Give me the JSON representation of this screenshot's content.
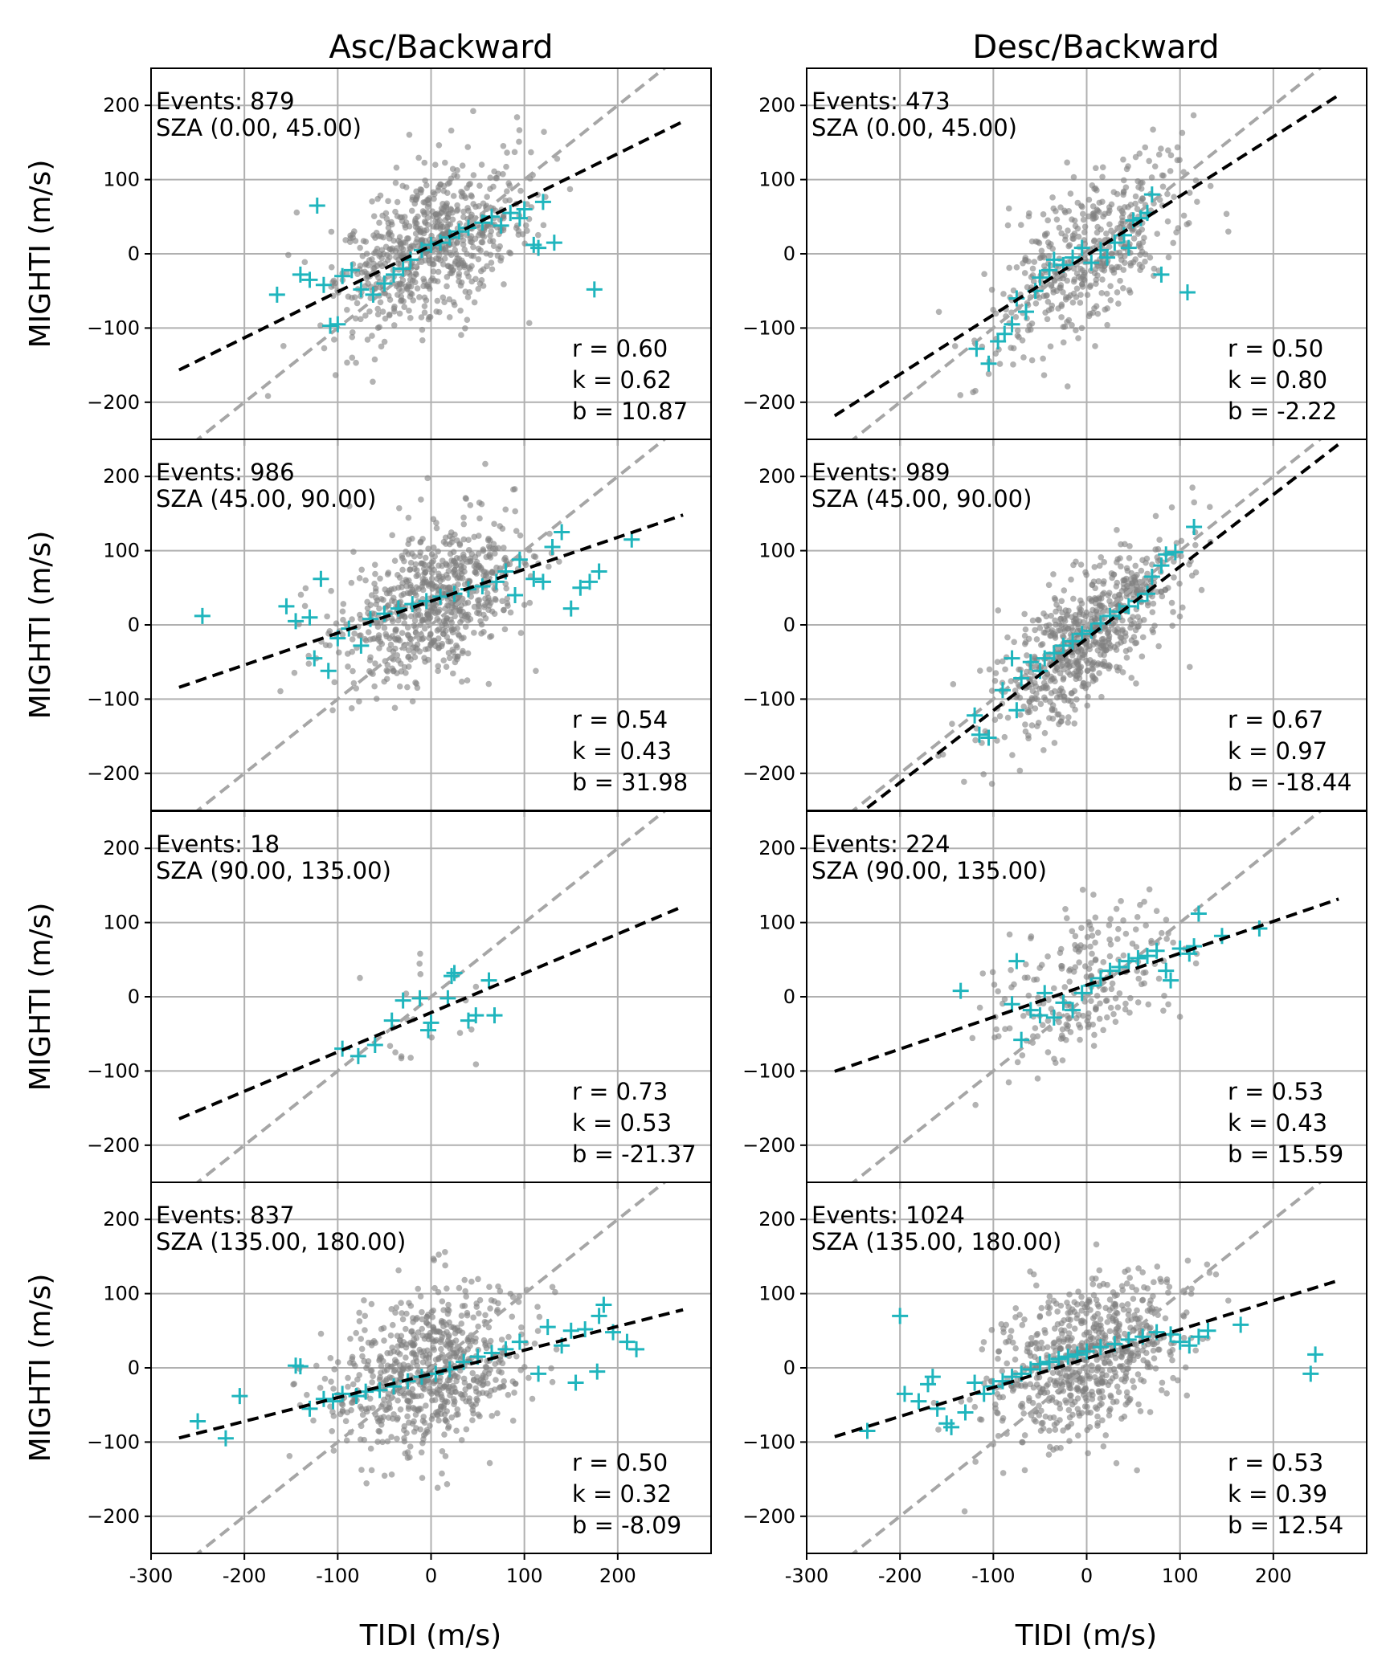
{
  "chart_data": {
    "type": "scatter",
    "layout": "4x2 panel grid",
    "column_titles": [
      "Asc/Backward",
      "Desc/Backward"
    ],
    "xlabel": "TIDI (m/s)",
    "ylabel": "MIGHTI (m/s)",
    "xlim": [
      -300,
      300
    ],
    "ylim": [
      -250,
      250
    ],
    "xticks": [
      -300,
      -200,
      -100,
      0,
      100,
      200
    ],
    "xtick_labels": [
      "-300",
      "-200",
      "-100",
      "0",
      "100",
      "200"
    ],
    "yticks": [
      -200,
      -100,
      0,
      100,
      200
    ],
    "ytick_labels": [
      "−200",
      "−100",
      "0",
      "100",
      "200"
    ],
    "grid": true,
    "reference_line": "y = x (gray dashed)",
    "fit_line": "y = k x + b (black dashed)",
    "colors": {
      "scatter": "#808080",
      "markers": "#1fb5bd",
      "fit": "#000000",
      "reference": "#a6a6a6",
      "grid": "#b0b0b0"
    },
    "panels": [
      {
        "column": "Asc/Backward",
        "row": 1,
        "events_text": "Events: 879",
        "sza_text": "SZA (0.00, 45.00)",
        "r_text": "r = 0.60",
        "k_text": "k = 0.62",
        "b_text": "b = 10.87",
        "r": 0.6,
        "k": 0.62,
        "b": 10.87,
        "fit_x": [
          -270,
          270
        ],
        "plus_points": [
          [
            -122,
            65
          ],
          [
            -165,
            -55
          ],
          [
            -140,
            -28
          ],
          [
            -130,
            -35
          ],
          [
            -115,
            -42
          ],
          [
            -108,
            -97
          ],
          [
            -100,
            -95
          ],
          [
            -95,
            -30
          ],
          [
            -85,
            -22
          ],
          [
            -75,
            -48
          ],
          [
            -62,
            -55
          ],
          [
            -50,
            -40
          ],
          [
            -40,
            -28
          ],
          [
            -30,
            -20
          ],
          [
            -22,
            -8
          ],
          [
            -10,
            5
          ],
          [
            0,
            12
          ],
          [
            10,
            15
          ],
          [
            20,
            22
          ],
          [
            30,
            30
          ],
          [
            40,
            35
          ],
          [
            55,
            42
          ],
          [
            65,
            50
          ],
          [
            75,
            38
          ],
          [
            85,
            55
          ],
          [
            95,
            48
          ],
          [
            100,
            60
          ],
          [
            110,
            12
          ],
          [
            115,
            8
          ],
          [
            120,
            70
          ],
          [
            132,
            15
          ],
          [
            175,
            -48
          ]
        ]
      },
      {
        "column": "Desc/Backward",
        "row": 1,
        "events_text": "Events: 473",
        "sza_text": "SZA (0.00, 45.00)",
        "r_text": "r = 0.50",
        "k_text": "k = 0.80",
        "b_text": "b = -2.22",
        "r": 0.5,
        "k": 0.8,
        "b": -2.22,
        "fit_x": [
          -270,
          270
        ],
        "plus_points": [
          [
            -118,
            -128
          ],
          [
            -105,
            -148
          ],
          [
            -95,
            -118
          ],
          [
            -88,
            -108
          ],
          [
            -80,
            -95
          ],
          [
            -75,
            -60
          ],
          [
            -65,
            -78
          ],
          [
            -55,
            -50
          ],
          [
            -50,
            -32
          ],
          [
            -40,
            -22
          ],
          [
            -35,
            -8
          ],
          [
            -25,
            -15
          ],
          [
            -15,
            -5
          ],
          [
            -5,
            8
          ],
          [
            5,
            -12
          ],
          [
            15,
            5
          ],
          [
            22,
            -5
          ],
          [
            30,
            15
          ],
          [
            40,
            25
          ],
          [
            45,
            8
          ],
          [
            50,
            45
          ],
          [
            58,
            48
          ],
          [
            65,
            55
          ],
          [
            70,
            80
          ],
          [
            80,
            -28
          ],
          [
            108,
            -52
          ]
        ]
      },
      {
        "column": "Asc/Backward",
        "row": 2,
        "events_text": "Events: 986",
        "sza_text": "SZA (45.00, 90.00)",
        "r_text": "r = 0.54",
        "k_text": "k = 0.43",
        "b_text": "b = 31.98",
        "r": 0.54,
        "k": 0.43,
        "b": 31.98,
        "fit_x": [
          -270,
          270
        ],
        "plus_points": [
          [
            -245,
            12
          ],
          [
            -155,
            25
          ],
          [
            -145,
            5
          ],
          [
            -130,
            10
          ],
          [
            -118,
            62
          ],
          [
            -125,
            -45
          ],
          [
            -110,
            -62
          ],
          [
            -100,
            -18
          ],
          [
            -88,
            -5
          ],
          [
            -75,
            -28
          ],
          [
            -65,
            8
          ],
          [
            -50,
            15
          ],
          [
            -35,
            22
          ],
          [
            -20,
            28
          ],
          [
            -5,
            32
          ],
          [
            10,
            38
          ],
          [
            25,
            42
          ],
          [
            40,
            48
          ],
          [
            55,
            52
          ],
          [
            70,
            58
          ],
          [
            80,
            72
          ],
          [
            90,
            40
          ],
          [
            95,
            88
          ],
          [
            110,
            62
          ],
          [
            120,
            58
          ],
          [
            130,
            105
          ],
          [
            140,
            125
          ],
          [
            150,
            22
          ],
          [
            160,
            50
          ],
          [
            170,
            58
          ],
          [
            180,
            72
          ],
          [
            215,
            115
          ]
        ]
      },
      {
        "column": "Desc/Backward",
        "row": 2,
        "events_text": "Events: 989",
        "sza_text": "SZA (45.00, 90.00)",
        "r_text": "r = 0.67",
        "k_text": "k = 0.97",
        "b_text": "b = -18.44",
        "r": 0.67,
        "k": 0.97,
        "b": -18.44,
        "fit_x": [
          -250,
          270
        ],
        "plus_points": [
          [
            -115,
            -148
          ],
          [
            -105,
            -152
          ],
          [
            -120,
            -122
          ],
          [
            -90,
            -88
          ],
          [
            -80,
            -45
          ],
          [
            -75,
            -115
          ],
          [
            -70,
            -72
          ],
          [
            -60,
            -50
          ],
          [
            -50,
            -62
          ],
          [
            -45,
            -45
          ],
          [
            -35,
            -38
          ],
          [
            -25,
            -28
          ],
          [
            -15,
            -22
          ],
          [
            -5,
            -12
          ],
          [
            5,
            -8
          ],
          [
            15,
            2
          ],
          [
            25,
            12
          ],
          [
            35,
            18
          ],
          [
            45,
            25
          ],
          [
            55,
            32
          ],
          [
            65,
            42
          ],
          [
            70,
            65
          ],
          [
            80,
            80
          ],
          [
            85,
            95
          ],
          [
            95,
            98
          ],
          [
            115,
            132
          ]
        ]
      },
      {
        "column": "Asc/Backward",
        "row": 3,
        "events_text": "Events: 18",
        "sza_text": "SZA (90.00, 135.00)",
        "r_text": "r = 0.73",
        "k_text": "k = 0.53",
        "b_text": "b = -21.37",
        "r": 0.73,
        "k": 0.53,
        "b": -21.37,
        "fit_x": [
          -270,
          270
        ],
        "plus_points": [
          [
            -95,
            -70
          ],
          [
            -78,
            -80
          ],
          [
            -60,
            -65
          ],
          [
            -42,
            -32
          ],
          [
            -30,
            -5
          ],
          [
            -12,
            -2
          ],
          [
            -3,
            -45
          ],
          [
            0,
            -35
          ],
          [
            18,
            -2
          ],
          [
            22,
            28
          ],
          [
            25,
            32
          ],
          [
            40,
            -32
          ],
          [
            48,
            -25
          ],
          [
            62,
            22
          ],
          [
            68,
            -25
          ]
        ]
      },
      {
        "column": "Desc/Backward",
        "row": 3,
        "events_text": "Events: 224",
        "sza_text": "SZA (90.00, 135.00)",
        "r_text": "r = 0.53",
        "k_text": "k = 0.43",
        "b_text": "b = 15.59",
        "r": 0.53,
        "k": 0.43,
        "b": 15.59,
        "fit_x": [
          -270,
          270
        ],
        "plus_points": [
          [
            -135,
            8
          ],
          [
            -80,
            -10
          ],
          [
            -75,
            48
          ],
          [
            -70,
            -58
          ],
          [
            -60,
            -18
          ],
          [
            -50,
            -25
          ],
          [
            -45,
            5
          ],
          [
            -35,
            -28
          ],
          [
            -25,
            -8
          ],
          [
            -15,
            -18
          ],
          [
            -5,
            5
          ],
          [
            5,
            15
          ],
          [
            15,
            25
          ],
          [
            25,
            35
          ],
          [
            35,
            40
          ],
          [
            45,
            48
          ],
          [
            55,
            52
          ],
          [
            65,
            55
          ],
          [
            75,
            62
          ],
          [
            85,
            35
          ],
          [
            90,
            22
          ],
          [
            100,
            65
          ],
          [
            110,
            58
          ],
          [
            115,
            68
          ],
          [
            120,
            112
          ],
          [
            145,
            82
          ],
          [
            185,
            92
          ]
        ]
      },
      {
        "column": "Asc/Backward",
        "row": 4,
        "events_text": "Events: 837",
        "sza_text": "SZA (135.00, 180.00)",
        "r_text": "r = 0.50",
        "k_text": "k = 0.32",
        "b_text": "b = -8.09",
        "r": 0.5,
        "k": 0.32,
        "b": -8.09,
        "fit_x": [
          -270,
          270
        ],
        "plus_points": [
          [
            -250,
            -72
          ],
          [
            -220,
            -95
          ],
          [
            -205,
            -38
          ],
          [
            -145,
            3
          ],
          [
            -140,
            2
          ],
          [
            -130,
            -55
          ],
          [
            -115,
            -42
          ],
          [
            -105,
            -45
          ],
          [
            -95,
            -35
          ],
          [
            -80,
            -38
          ],
          [
            -70,
            -32
          ],
          [
            -55,
            -30
          ],
          [
            -40,
            -25
          ],
          [
            -25,
            -18
          ],
          [
            -10,
            -12
          ],
          [
            5,
            -8
          ],
          [
            20,
            -2
          ],
          [
            35,
            8
          ],
          [
            50,
            15
          ],
          [
            65,
            20
          ],
          [
            80,
            25
          ],
          [
            95,
            35
          ],
          [
            115,
            -8
          ],
          [
            125,
            55
          ],
          [
            140,
            30
          ],
          [
            150,
            50
          ],
          [
            155,
            -20
          ],
          [
            165,
            52
          ],
          [
            178,
            -5
          ],
          [
            180,
            70
          ],
          [
            185,
            85
          ],
          [
            195,
            48
          ],
          [
            210,
            35
          ],
          [
            220,
            25
          ]
        ]
      },
      {
        "column": "Desc/Backward",
        "row": 4,
        "events_text": "Events: 1024",
        "sza_text": "SZA (135.00, 180.00)",
        "r_text": "r = 0.53",
        "k_text": "k = 0.39",
        "b_text": "b = 12.54",
        "r": 0.53,
        "k": 0.39,
        "b": 12.54,
        "fit_x": [
          -270,
          270
        ],
        "plus_points": [
          [
            -235,
            -85
          ],
          [
            -200,
            70
          ],
          [
            -195,
            -35
          ],
          [
            -180,
            -45
          ],
          [
            -170,
            -22
          ],
          [
            -165,
            -12
          ],
          [
            -160,
            -55
          ],
          [
            -150,
            -75
          ],
          [
            -145,
            -80
          ],
          [
            -130,
            -60
          ],
          [
            -120,
            -20
          ],
          [
            -110,
            -35
          ],
          [
            -100,
            -25
          ],
          [
            -90,
            -18
          ],
          [
            -80,
            -12
          ],
          [
            -70,
            -8
          ],
          [
            -60,
            -2
          ],
          [
            -50,
            5
          ],
          [
            -40,
            8
          ],
          [
            -30,
            12
          ],
          [
            -20,
            15
          ],
          [
            -10,
            18
          ],
          [
            0,
            22
          ],
          [
            15,
            28
          ],
          [
            30,
            32
          ],
          [
            45,
            38
          ],
          [
            60,
            42
          ],
          [
            75,
            48
          ],
          [
            90,
            45
          ],
          [
            100,
            35
          ],
          [
            110,
            30
          ],
          [
            120,
            42
          ],
          [
            130,
            50
          ],
          [
            165,
            58
          ],
          [
            240,
            -8
          ],
          [
            245,
            18
          ]
        ]
      }
    ]
  }
}
